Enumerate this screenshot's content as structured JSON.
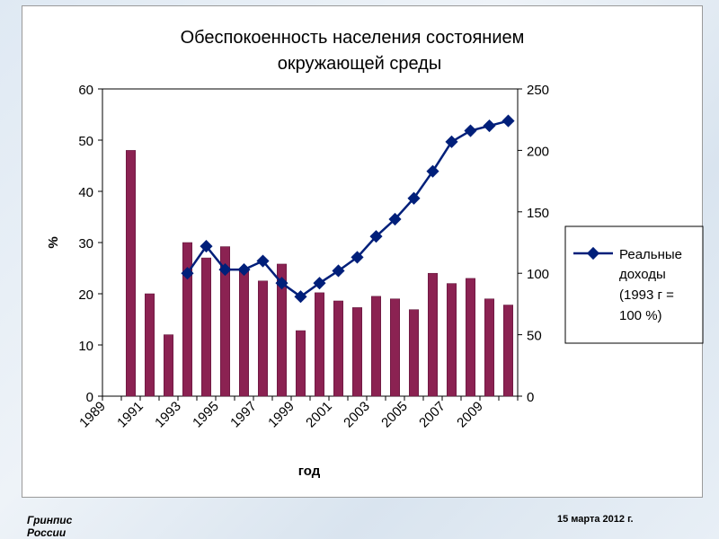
{
  "chart_data": {
    "type": "bar",
    "title_line1": "Обеспокоенность населения состоянием",
    "title_line2": "окружающей среды",
    "xlabel": "год",
    "ylabel": "%",
    "ylim": [
      0,
      60
    ],
    "y2lim": [
      0,
      250
    ],
    "yticks": [
      "0",
      "10",
      "20",
      "30",
      "40",
      "50",
      "60"
    ],
    "y2ticks": [
      "0",
      "50",
      "100",
      "150",
      "200",
      "250"
    ],
    "categories": [
      "1989",
      "1990",
      "1991",
      "1992",
      "1993",
      "1994",
      "1995",
      "1996",
      "1997",
      "1998",
      "1999",
      "2000",
      "2001",
      "2002",
      "2003",
      "2004",
      "2005",
      "2006",
      "2007",
      "2008",
      "2009",
      "2010"
    ],
    "xtick_labels": [
      "1989",
      "1991",
      "1993",
      "1995",
      "1997",
      "1999",
      "2001",
      "2003",
      "2005",
      "2007",
      "2009"
    ],
    "bar_series": {
      "color": "#8b2252",
      "values": [
        null,
        48,
        20,
        12,
        30,
        27,
        29.2,
        24.5,
        22.5,
        25.8,
        12.8,
        20.2,
        18.6,
        17.3,
        19.5,
        19,
        16.9,
        24,
        22,
        23,
        19,
        17.8
      ]
    },
    "line_series": {
      "name": "Реальные доходы (1993 г = 100 %)",
      "color": "#001f7a",
      "axis": "right",
      "values": [
        null,
        null,
        null,
        null,
        100,
        122,
        103,
        103,
        110,
        92,
        81,
        92,
        102,
        113,
        130,
        144,
        161,
        183,
        207,
        216,
        220,
        224
      ]
    },
    "legend": {
      "line1": "Реальные",
      "line2": "доходы",
      "line3": "(1993 г =",
      "line4": "100 %)",
      "placement": "right"
    }
  },
  "footer": {
    "left": "Гринпис России",
    "right": "15 марта 2012 г."
  }
}
